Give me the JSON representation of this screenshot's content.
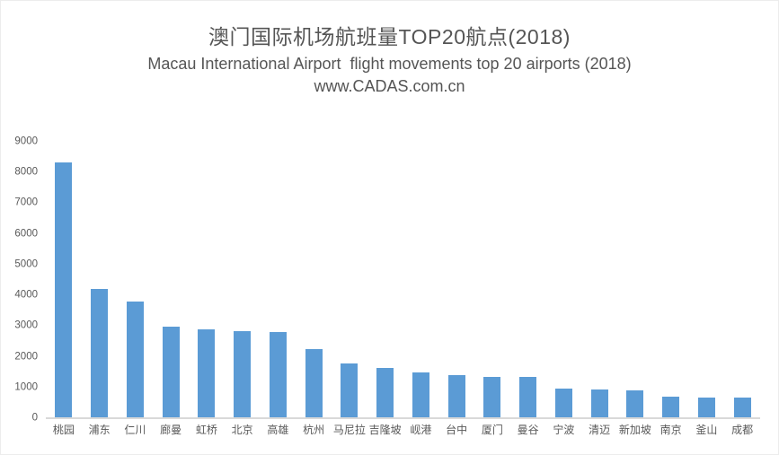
{
  "header": {
    "title_cn": "澳门国际机场航班量TOP20航点(2018)",
    "title_en": "Macau International Airport  flight movements top 20 airports (2018)",
    "source": "www.CADAS.com.cn"
  },
  "chart_data": {
    "type": "bar",
    "title": "澳门国际机场航班量TOP20航点(2018)",
    "subtitle": "Macau International Airport  flight movements top 20 airports (2018)",
    "source": "www.CADAS.com.cn",
    "categories": [
      "桃园",
      "浦东",
      "仁川",
      "廊曼",
      "虹桥",
      "北京",
      "高雄",
      "杭州",
      "马尼拉",
      "吉隆坡",
      "岘港",
      "台中",
      "厦门",
      "曼谷",
      "宁波",
      "清迈",
      "新加坡",
      "南京",
      "釜山",
      "成都"
    ],
    "values": [
      8310,
      4170,
      3760,
      2960,
      2870,
      2820,
      2790,
      2230,
      1740,
      1620,
      1470,
      1370,
      1330,
      1310,
      950,
      920,
      870,
      670,
      655,
      645
    ],
    "xlabel": "",
    "ylabel": "",
    "ylim": [
      0,
      9000
    ],
    "yticks": [
      0,
      1000,
      2000,
      3000,
      4000,
      5000,
      6000,
      7000,
      8000,
      9000
    ],
    "grid": false,
    "legend": false,
    "bar_color": "#5b9bd5",
    "axis_line_color": "#d9d9d9",
    "label_color": "#595959"
  }
}
